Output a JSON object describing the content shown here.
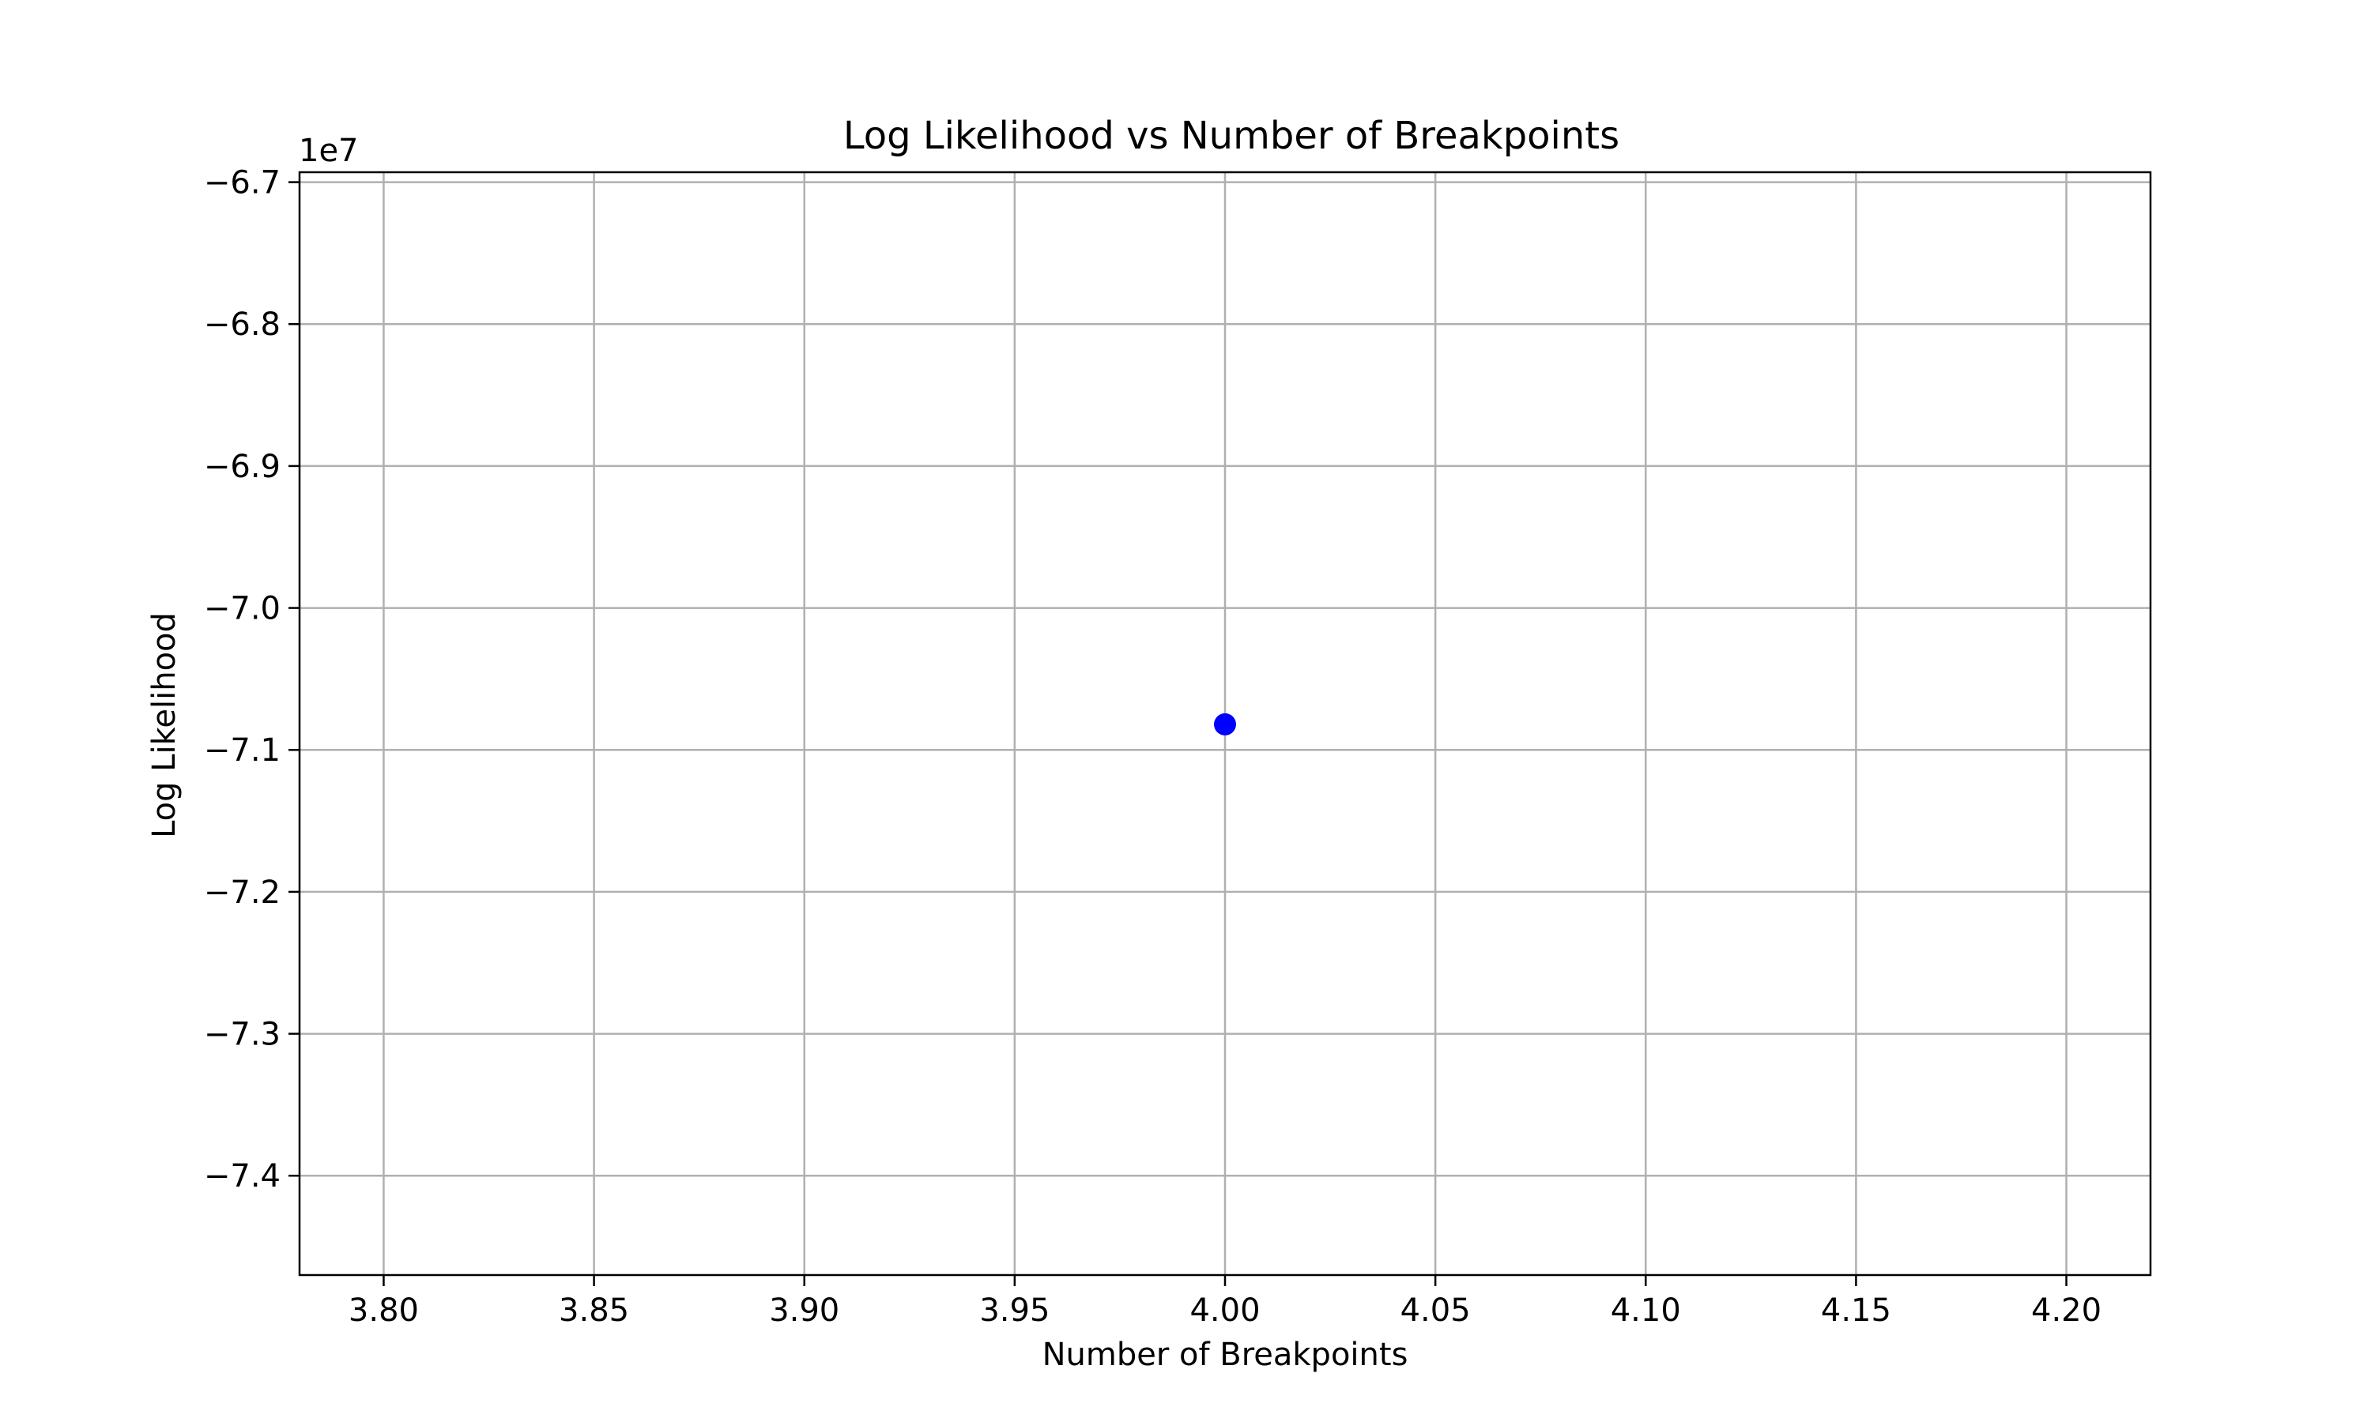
{
  "chart_data": {
    "type": "scatter",
    "title": "Log Likelihood vs Number of Breakpoints",
    "xlabel": "Number of Breakpoints",
    "ylabel": "Log Likelihood",
    "y_offset_label": "1e7",
    "xlim": [
      3.78,
      4.22
    ],
    "ylim": [
      -7.47,
      -6.693
    ],
    "x_ticks": [
      3.8,
      3.85,
      3.9,
      3.95,
      4.0,
      4.05,
      4.1,
      4.15,
      4.2
    ],
    "x_tick_labels": [
      "3.80",
      "3.85",
      "3.90",
      "3.95",
      "4.00",
      "4.05",
      "4.10",
      "4.15",
      "4.20"
    ],
    "y_ticks": [
      -6.7,
      -6.8,
      -6.9,
      -7.0,
      -7.1,
      -7.2,
      -7.3,
      -7.4
    ],
    "y_tick_labels": [
      "−6.7",
      "−6.8",
      "−6.9",
      "−7.0",
      "−7.1",
      "−7.2",
      "−7.3",
      "−7.4"
    ],
    "grid": true,
    "series": [
      {
        "color": "#0000ff",
        "points": [
          {
            "x": 4.0,
            "y": -7.082
          }
        ]
      }
    ]
  }
}
